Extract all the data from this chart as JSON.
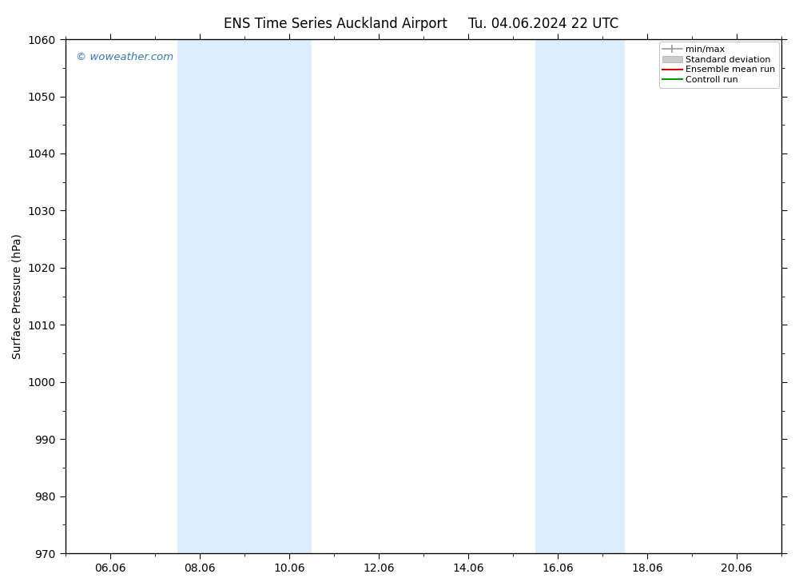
{
  "title_left": "ENS Time Series Auckland Airport",
  "title_right": "Tu. 04.06.2024 22 UTC",
  "ylabel": "Surface Pressure (hPa)",
  "ylim": [
    970,
    1060
  ],
  "yticks": [
    970,
    980,
    990,
    1000,
    1010,
    1020,
    1030,
    1040,
    1050,
    1060
  ],
  "xtick_labels": [
    "06.06",
    "08.06",
    "10.06",
    "12.06",
    "14.06",
    "16.06",
    "18.06",
    "20.06"
  ],
  "xtick_positions": [
    1,
    3,
    5,
    7,
    9,
    11,
    13,
    15
  ],
  "xminor_positions": [
    0,
    2,
    4,
    6,
    8,
    10,
    12,
    14,
    16
  ],
  "xlim": [
    0,
    16
  ],
  "shade_bands": [
    {
      "xmin": 2.5,
      "xmax": 5.5
    },
    {
      "xmin": 10.5,
      "xmax": 12.5
    }
  ],
  "shade_color": "#ddeeff",
  "background_color": "#ffffff",
  "watermark_text": "© woweather.com",
  "watermark_color": "#3377bb",
  "legend_items": [
    {
      "label": "min/max",
      "color": "#999999"
    },
    {
      "label": "Standard deviation",
      "color": "#cccccc"
    },
    {
      "label": "Ensemble mean run",
      "color": "#cc0000"
    },
    {
      "label": "Controll run",
      "color": "#009900"
    }
  ],
  "title_fontsize": 12,
  "tick_fontsize": 10,
  "ylabel_fontsize": 10,
  "legend_fontsize": 8
}
